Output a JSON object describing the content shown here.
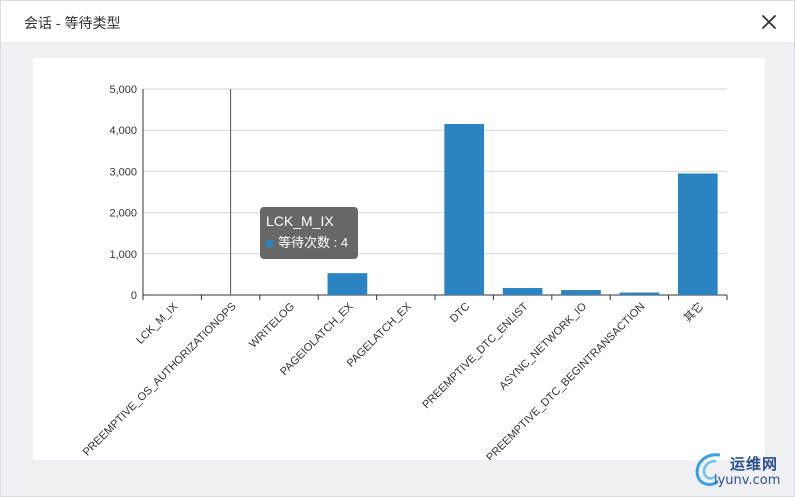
{
  "window": {
    "title": "会话 - 等待类型"
  },
  "icons": {
    "close": "close-icon",
    "watermark_logo": "swirl-logo-icon"
  },
  "colors": {
    "bar": "#2b84c2",
    "axis": "#333333",
    "grid": "#d6d6d6",
    "tooltip_bg": "#5a5a5a"
  },
  "tooltip": {
    "title": "LCK_M_IX",
    "series_label": "等待次数 : 4"
  },
  "watermark": {
    "text": "运维网",
    "domain": "iyunv.com"
  },
  "chart_data": {
    "type": "bar",
    "categories": [
      "LCK_M_IX",
      "PREEMPTIVE_OS_AUTHORIZATIONOPS",
      "WRITELOG",
      "PAGEIOLATCH_EX",
      "PAGELATCH_EX",
      "DTC",
      "PREEMPTIVE_DTC_ENLIST",
      "ASYNC_NETWORK_IO",
      "PREEMPTIVE_DTC_BEGINTRANSACTION",
      "其它"
    ],
    "series": [
      {
        "name": "等待次数",
        "values": [
          4,
          0,
          0,
          530,
          0,
          4150,
          170,
          120,
          60,
          2950
        ]
      }
    ],
    "ylim": [
      0,
      5000
    ],
    "yticks": [
      "0",
      "1,000",
      "2,000",
      "3,000",
      "4,000",
      "5,000"
    ],
    "grid": true,
    "hover_index": 1
  }
}
